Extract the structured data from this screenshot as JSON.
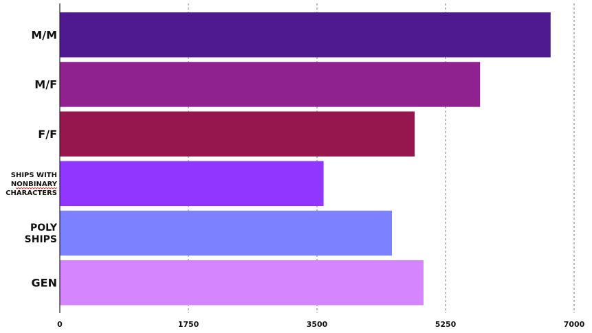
{
  "chart_data": {
    "type": "bar",
    "orientation": "horizontal",
    "categories": [
      [
        "M/M"
      ],
      [
        "M/F"
      ],
      [
        "F/F"
      ],
      [
        "SHIPS WITH",
        "NONBINARY",
        "CHARACTERS"
      ],
      [
        "POLY",
        "SHIPS"
      ],
      [
        "GEN"
      ]
    ],
    "values": [
      6680,
      5720,
      4830,
      3590,
      4520,
      4950
    ],
    "colors": [
      "#4f1a8f",
      "#8f228f",
      "#96174e",
      "#9036fe",
      "#7c82ff",
      "#d585fe"
    ],
    "xlim": [
      0,
      7000
    ],
    "xticks": [
      0,
      1750,
      3500,
      5250,
      7000
    ],
    "grid": true,
    "title": "",
    "xlabel": "",
    "ylabel": ""
  }
}
